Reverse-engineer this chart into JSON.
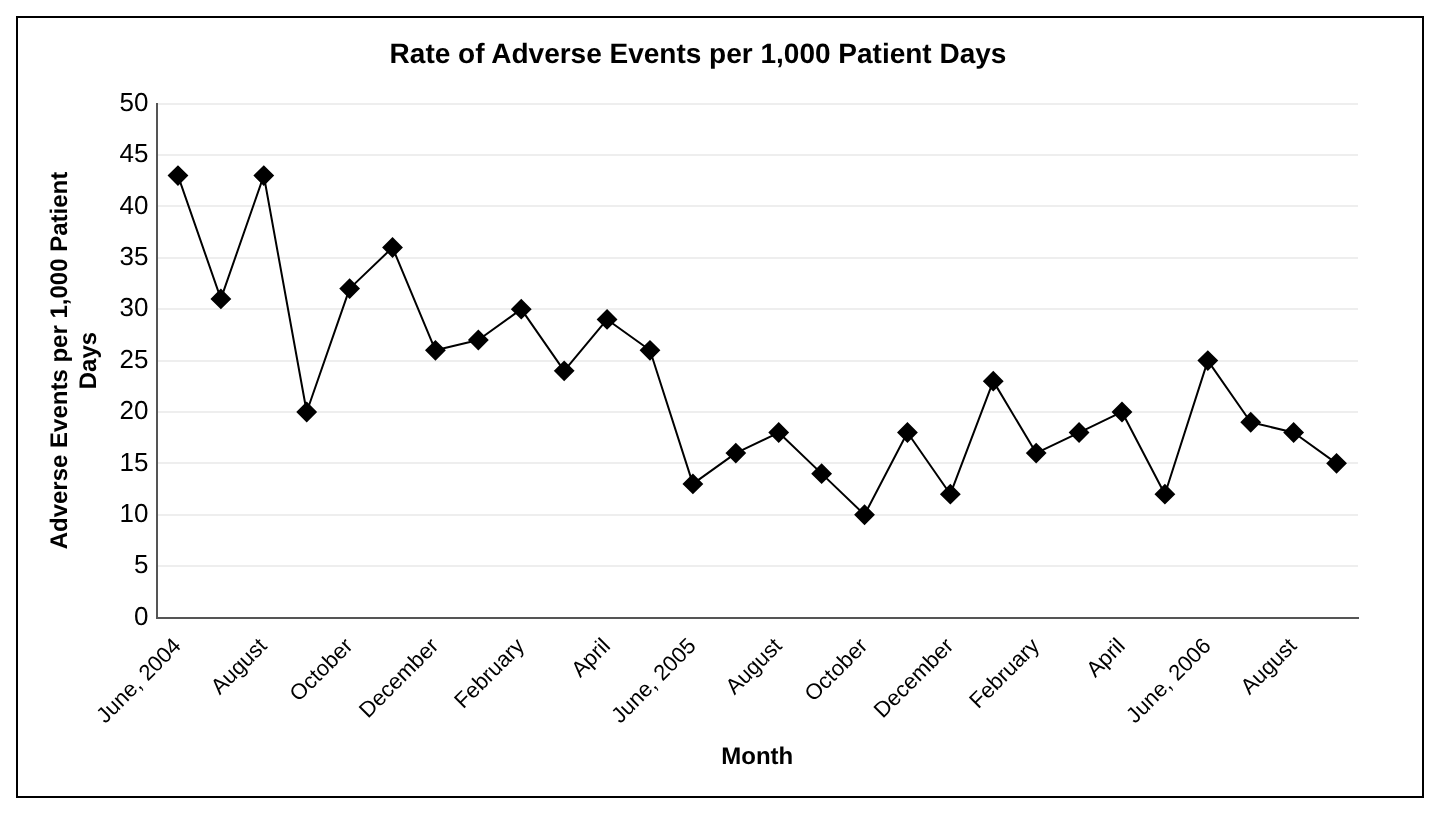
{
  "chart_data": {
    "type": "line",
    "title": "Rate of Adverse Events per 1,000 Patient Days",
    "xlabel": "Month",
    "ylabel": "Adverse Events per 1,000 Patient Days",
    "categories": [
      "June, 2004",
      null,
      "August",
      null,
      "October",
      null,
      "December",
      null,
      "February",
      null,
      "April",
      null,
      "June, 2005",
      null,
      "August",
      null,
      "October",
      null,
      "December",
      null,
      "February",
      null,
      "April",
      null,
      "June, 2006",
      null,
      "August",
      null
    ],
    "series": [
      {
        "color": "#000000",
        "values": [
          43,
          31,
          43,
          20,
          32,
          36,
          26,
          27,
          30,
          24,
          29,
          26,
          13,
          16,
          18,
          14,
          10,
          18,
          12,
          23,
          16,
          18,
          20,
          12,
          25,
          19,
          18,
          15
        ]
      }
    ],
    "ylim": [
      0,
      50
    ],
    "yticks": [
      0,
      5,
      10,
      15,
      20,
      25,
      30,
      35,
      40,
      45,
      50
    ],
    "grid": "y",
    "legend": false,
    "marker": "diamond",
    "line_style": "solid"
  }
}
